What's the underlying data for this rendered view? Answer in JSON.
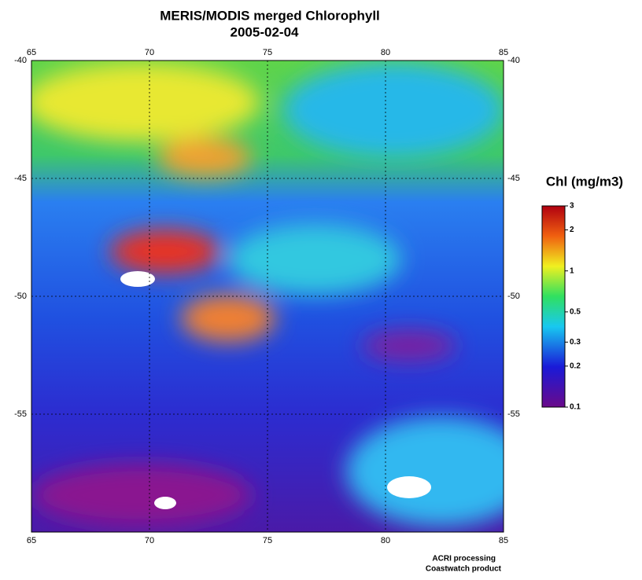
{
  "title": "MERIS/MODIS merged Chlorophyll",
  "date": "2005-02-04",
  "map": {
    "lonlim": [
      65,
      85
    ],
    "latlim": [
      -40,
      -60
    ],
    "lonticks": [
      65,
      70,
      75,
      80,
      85
    ],
    "latticks": [
      -40,
      -45,
      -50,
      -55
    ],
    "grid": true
  },
  "colorbar": {
    "title": "Chl (mg/m3)",
    "lim": [
      0.1,
      3
    ],
    "scale": "log",
    "ticks": [
      3,
      2,
      1,
      0.5,
      0.3,
      0.2,
      0.1
    ]
  },
  "credits": [
    "ACRI processing",
    "Coastwatch product"
  ]
}
